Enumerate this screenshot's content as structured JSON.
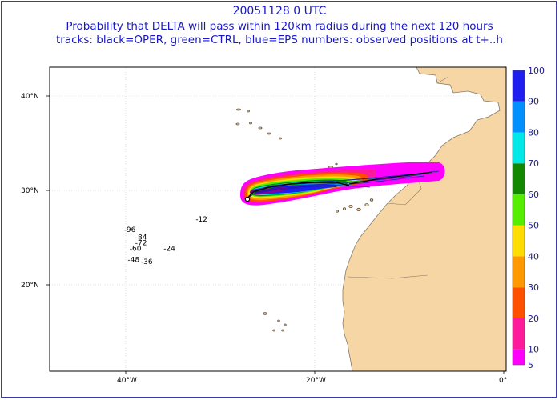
{
  "header": {
    "line1": "20051128 0 UTC",
    "line2": "Probability that DELTA will pass within 120km radius during the next 120 hours",
    "line3": "tracks: black=OPER, green=CTRL, blue=EPS numbers: observed positions at t+..h"
  },
  "axes": {
    "lat_labels": [
      "40°N",
      "30°N",
      "20°N"
    ],
    "lon_labels": [
      "40°W",
      "20°W",
      "0°"
    ]
  },
  "observed_positions": [
    {
      "label": "-96",
      "lon": -40.2,
      "lat": 25.6
    },
    {
      "label": "-84",
      "lon": -39.0,
      "lat": 24.8
    },
    {
      "label": "-72",
      "lon": -39.0,
      "lat": 24.2
    },
    {
      "label": "-60",
      "lon": -39.6,
      "lat": 23.6
    },
    {
      "label": "-48",
      "lon": -39.8,
      "lat": 22.4
    },
    {
      "label": "-36",
      "lon": -38.4,
      "lat": 22.2
    },
    {
      "label": "-24",
      "lon": -36.0,
      "lat": 23.6
    },
    {
      "label": "-12",
      "lon": -32.6,
      "lat": 26.7
    }
  ],
  "colorbar": {
    "levels": [
      5,
      10,
      20,
      30,
      40,
      50,
      60,
      70,
      80,
      90,
      100
    ],
    "labels": [
      "5",
      "10",
      "20",
      "30",
      "40",
      "50",
      "60",
      "70",
      "80",
      "90",
      "100"
    ],
    "colors": [
      "#ff00ff",
      "#ff1a9c",
      "#ff5000",
      "#ff9900",
      "#ffdd00",
      "#55ee00",
      "#118800",
      "#00e8e8",
      "#0090ff",
      "#1e1ef0",
      "#8c0099"
    ]
  },
  "colors": {
    "land": "#f6d6a4",
    "title": "#1818c8"
  }
}
